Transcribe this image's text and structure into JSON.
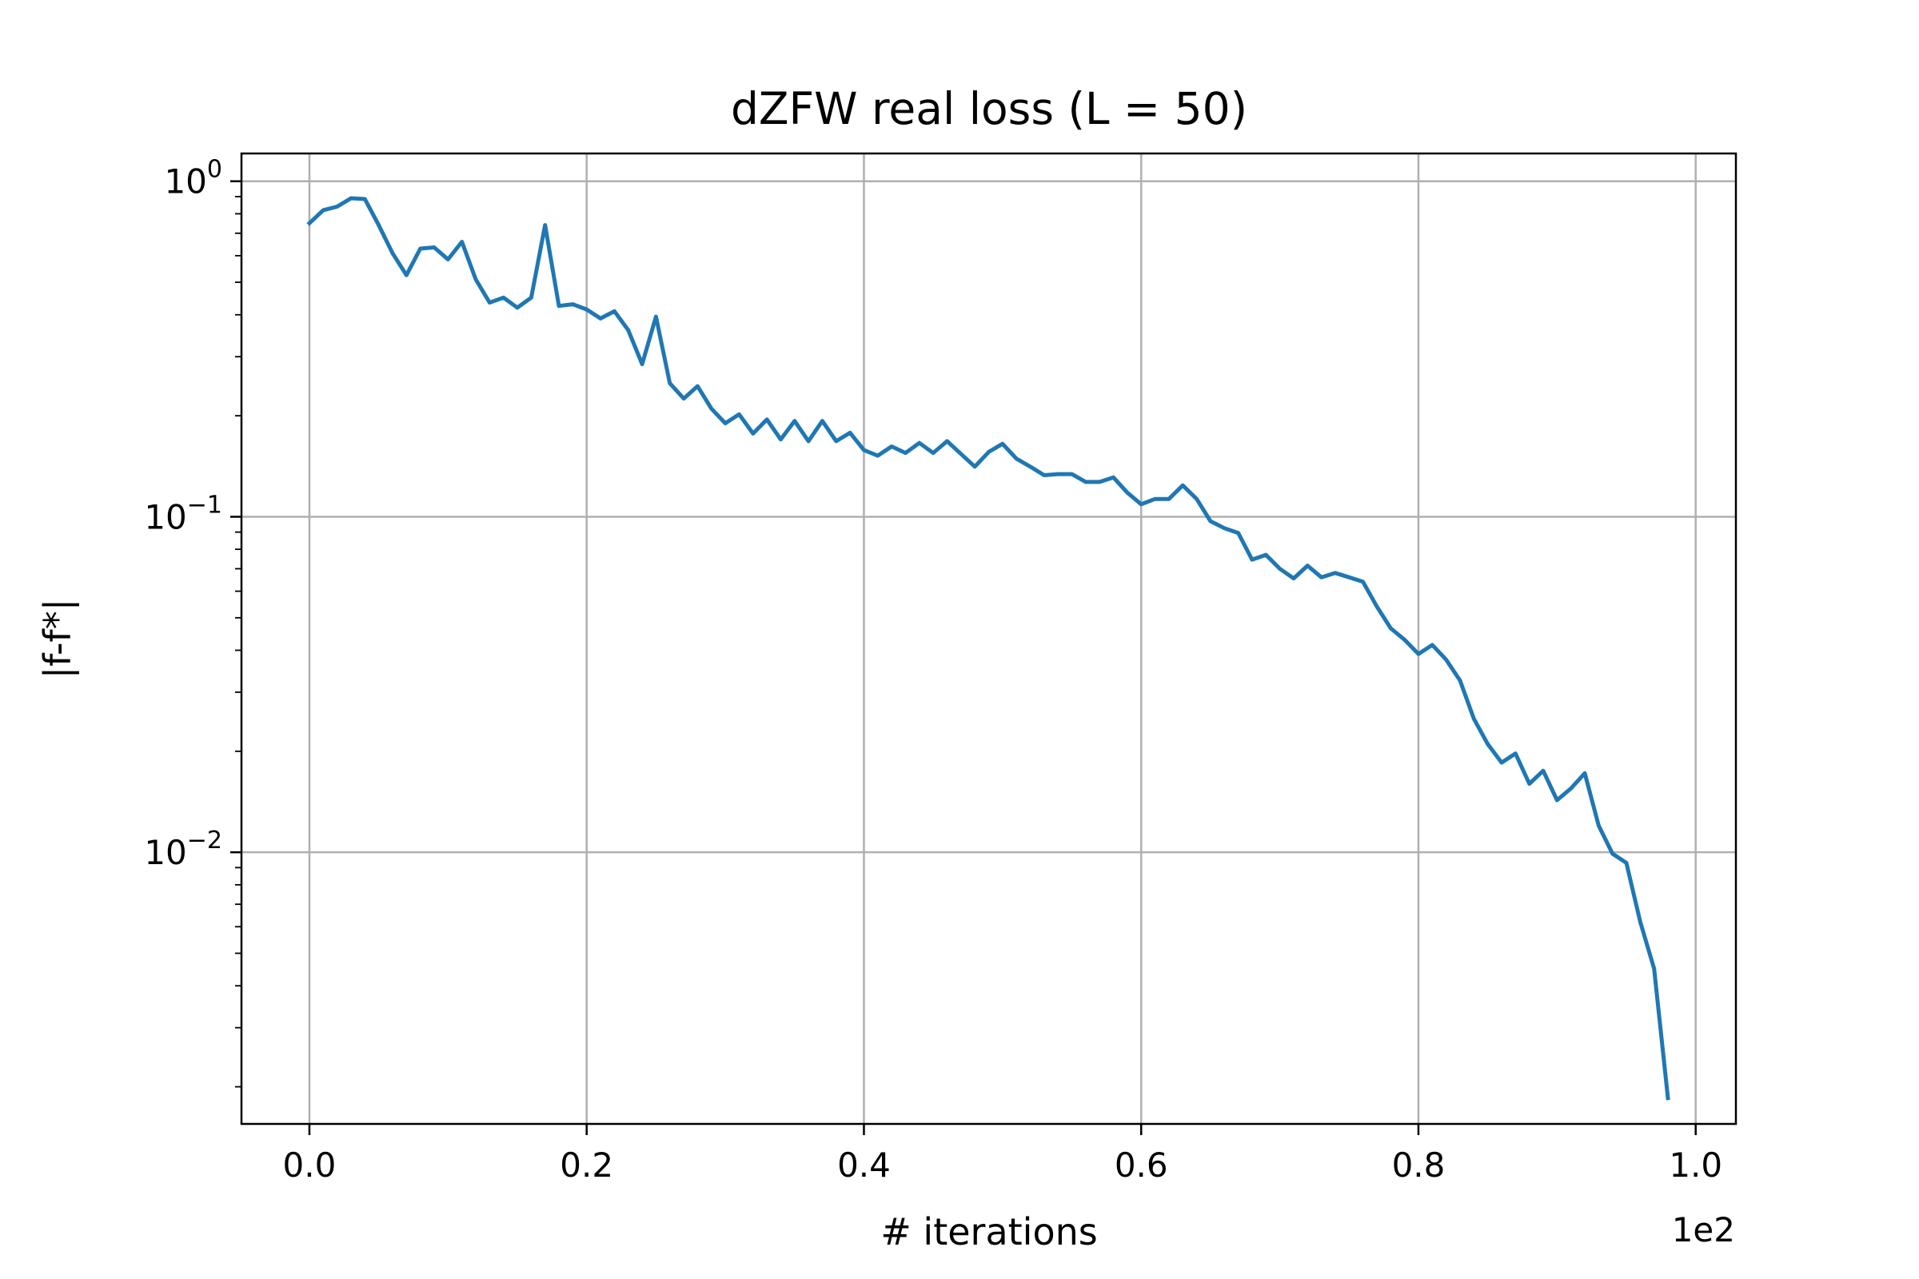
{
  "chart_data": {
    "type": "line",
    "title": "dZFW real loss (L = 50)",
    "xlabel": "# iterations",
    "ylabel": "|f-f*|",
    "x_offset_label": "1e2",
    "x_scale_factor": 100,
    "yscale": "log",
    "grid": true,
    "xlim": [
      -0.049,
      1.029
    ],
    "ylim": [
      0.00155,
      1.21
    ],
    "x_ticks": [
      {
        "value": 0.0,
        "label": "0.0"
      },
      {
        "value": 0.2,
        "label": "0.2"
      },
      {
        "value": 0.4,
        "label": "0.4"
      },
      {
        "value": 0.6,
        "label": "0.6"
      },
      {
        "value": 0.8,
        "label": "0.8"
      },
      {
        "value": 1.0,
        "label": "1.0"
      }
    ],
    "y_ticks": [
      {
        "value": 1,
        "base": "10",
        "exp": "0"
      },
      {
        "value": 0.1,
        "base": "10",
        "exp": "−1"
      },
      {
        "value": 0.01,
        "base": "10",
        "exp": "−2"
      }
    ],
    "series": [
      {
        "color": "#1f77b4",
        "x": [
          0.0,
          0.01,
          0.02,
          0.03,
          0.04,
          0.05,
          0.06,
          0.07,
          0.08,
          0.09,
          0.1,
          0.11,
          0.12,
          0.13,
          0.14,
          0.15,
          0.16,
          0.17,
          0.18,
          0.19,
          0.2,
          0.21,
          0.22,
          0.23,
          0.24,
          0.25,
          0.26,
          0.27,
          0.28,
          0.29,
          0.3,
          0.31,
          0.32,
          0.33,
          0.34,
          0.35,
          0.36,
          0.37,
          0.38,
          0.39,
          0.4,
          0.41,
          0.42,
          0.43,
          0.44,
          0.45,
          0.46,
          0.47,
          0.48,
          0.49,
          0.5,
          0.51,
          0.52,
          0.53,
          0.54,
          0.55,
          0.56,
          0.57,
          0.58,
          0.59,
          0.6,
          0.61,
          0.62,
          0.63,
          0.64,
          0.65,
          0.66,
          0.67,
          0.68,
          0.69,
          0.7,
          0.71,
          0.72,
          0.73,
          0.74,
          0.75,
          0.76,
          0.77,
          0.78,
          0.79,
          0.8,
          0.81,
          0.82,
          0.83,
          0.84,
          0.85,
          0.86,
          0.87,
          0.88,
          0.89,
          0.9,
          0.91,
          0.92,
          0.93,
          0.94,
          0.95,
          0.96,
          0.97,
          0.98
        ],
        "y": [
          0.75,
          0.82,
          0.84,
          0.89,
          0.885,
          0.74,
          0.61,
          0.525,
          0.63,
          0.635,
          0.585,
          0.66,
          0.51,
          0.435,
          0.45,
          0.42,
          0.45,
          0.74,
          0.425,
          0.43,
          0.415,
          0.39,
          0.41,
          0.36,
          0.285,
          0.395,
          0.25,
          0.225,
          0.245,
          0.21,
          0.19,
          0.202,
          0.177,
          0.195,
          0.17,
          0.193,
          0.168,
          0.193,
          0.168,
          0.178,
          0.158,
          0.152,
          0.162,
          0.155,
          0.166,
          0.155,
          0.168,
          0.154,
          0.141,
          0.156,
          0.165,
          0.149,
          0.141,
          0.133,
          0.134,
          0.134,
          0.127,
          0.127,
          0.131,
          0.118,
          0.109,
          0.113,
          0.113,
          0.124,
          0.113,
          0.097,
          0.0925,
          0.0895,
          0.0745,
          0.077,
          0.07,
          0.0655,
          0.0715,
          0.066,
          0.068,
          0.066,
          0.064,
          0.054,
          0.0465,
          0.043,
          0.039,
          0.0415,
          0.0375,
          0.0325,
          0.025,
          0.021,
          0.0185,
          0.0197,
          0.016,
          0.0175,
          0.0143,
          0.0155,
          0.0172,
          0.012,
          0.0099,
          0.0093,
          0.0062,
          0.0045,
          0.00185
        ]
      }
    ]
  }
}
